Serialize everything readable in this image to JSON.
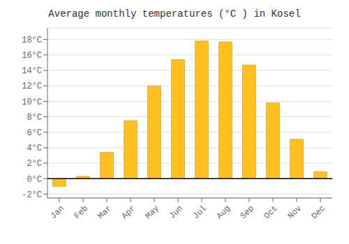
{
  "chart_data": {
    "type": "bar",
    "title": "Average monthly temperatures (°C ) in Kosel",
    "categories": [
      "Jan",
      "Feb",
      "Mar",
      "Apr",
      "May",
      "Jun",
      "Jul",
      "Aug",
      "Sep",
      "Oct",
      "Nov",
      "Dec"
    ],
    "values": [
      -1.0,
      0.3,
      3.4,
      7.5,
      12.0,
      15.4,
      17.8,
      17.7,
      14.7,
      9.8,
      5.1,
      0.9
    ],
    "color": "#FFC020",
    "ylim": [
      -2.5,
      19.5
    ],
    "yticks": [
      {
        "value": -2,
        "label": "-2°C"
      },
      {
        "value": 0,
        "label": "0°C"
      },
      {
        "value": 2,
        "label": "2°C"
      },
      {
        "value": 4,
        "label": "4°C"
      },
      {
        "value": 6,
        "label": "6°C"
      },
      {
        "value": 8,
        "label": "8°C"
      },
      {
        "value": 10,
        "label": "10°C"
      },
      {
        "value": 12,
        "label": "12°C"
      },
      {
        "value": 14,
        "label": "14°C"
      },
      {
        "value": 16,
        "label": "16°C"
      },
      {
        "value": 18,
        "label": "18°C"
      }
    ],
    "grid": true
  }
}
